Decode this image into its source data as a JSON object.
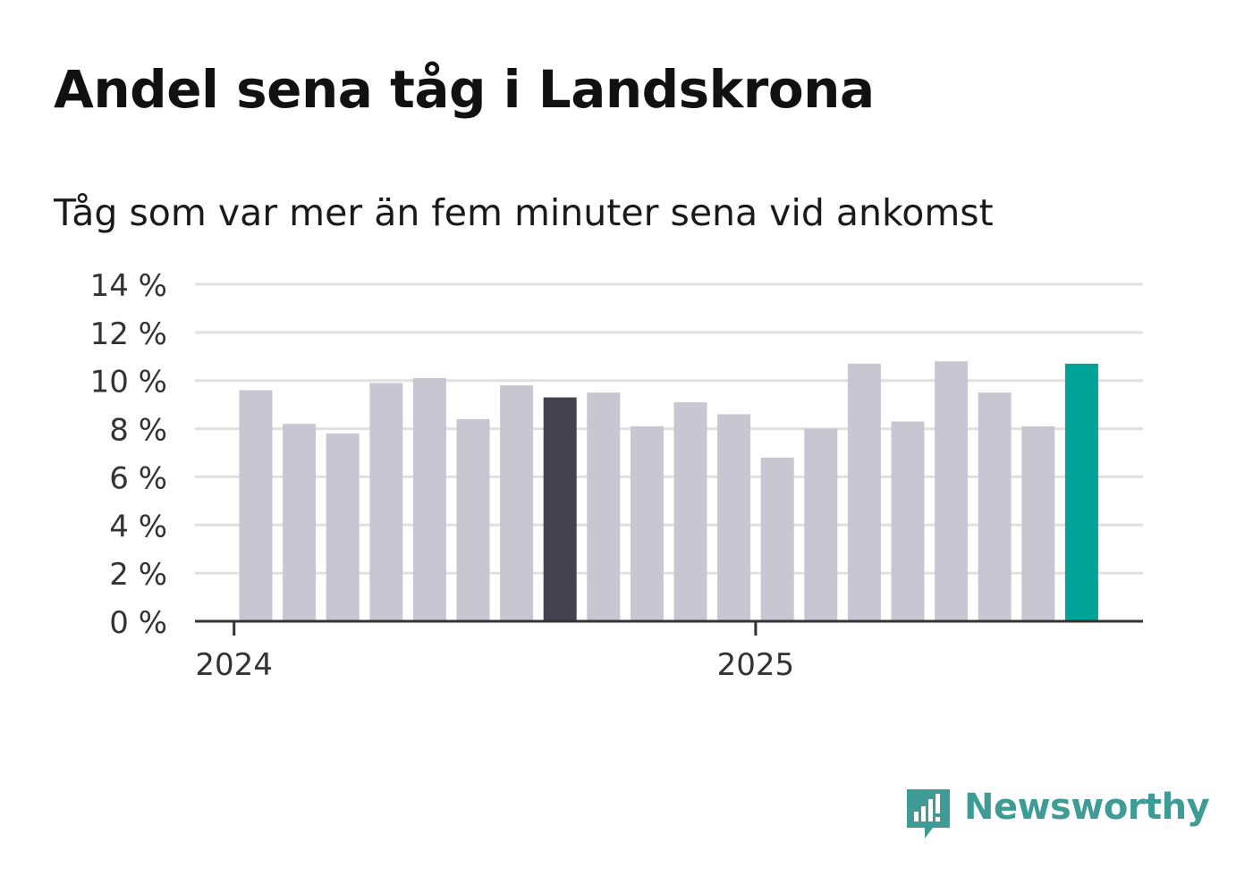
{
  "title": "Andel sena tåg i Landskrona",
  "subtitle": "Tåg som var mer än fem minuter sena vid ankomst",
  "brand": {
    "name": "Newsworthy",
    "color": "#3e9b95",
    "icon": "bar-chart-speech-bubble-icon"
  },
  "colors": {
    "bar_default": "#c8c7d1",
    "bar_highlight_dark": "#44424f",
    "bar_highlight_latest": "#00a398",
    "grid": "#e0e0e0",
    "axis": "#333333"
  },
  "chart_data": {
    "type": "bar",
    "title": "Andel sena tåg i Landskrona",
    "subtitle": "Tåg som var mer än fem minuter sena vid ankomst",
    "unit": "%",
    "ylim": [
      0,
      14
    ],
    "yticks": [
      0,
      2,
      4,
      6,
      8,
      10,
      12,
      14
    ],
    "ytick_labels": [
      "0 %",
      "2 %",
      "4 %",
      "6 %",
      "8 %",
      "10 %",
      "12 %",
      "14 %"
    ],
    "xtick_labels": [
      {
        "label": "2024",
        "index": -0.5
      },
      {
        "label": "2025",
        "index": 11.5
      }
    ],
    "grid": true,
    "legend": "none",
    "values": [
      9.6,
      8.2,
      7.8,
      9.9,
      10.1,
      8.4,
      9.8,
      9.3,
      9.5,
      8.1,
      9.1,
      8.6,
      6.8,
      8.0,
      10.7,
      8.3,
      10.8,
      9.5,
      8.1,
      10.7
    ],
    "highlight": {
      "7": "dark",
      "19": "latest"
    }
  }
}
